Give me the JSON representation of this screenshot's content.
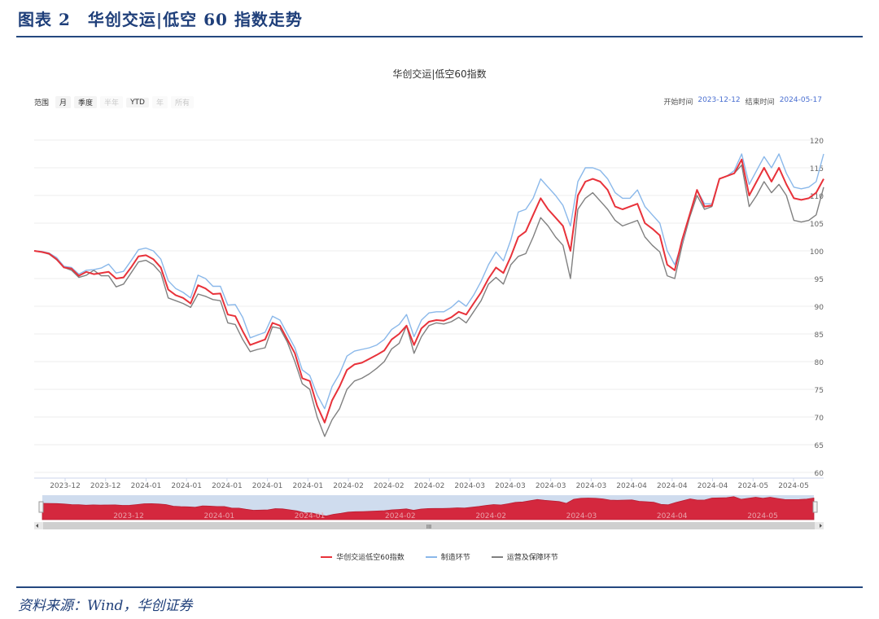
{
  "header": {
    "title": "图表 2　华创交运|低空 60 指数走势"
  },
  "footer": {
    "source": "资料来源：Wind，华创证券"
  },
  "controls": {
    "range_label": "范围",
    "buttons": [
      {
        "label": "月",
        "enabled": true
      },
      {
        "label": "季度",
        "enabled": true
      },
      {
        "label": "半年",
        "enabled": false
      },
      {
        "label": "YTD",
        "enabled": true
      },
      {
        "label": "年",
        "enabled": false
      },
      {
        "label": "所有",
        "enabled": false
      }
    ],
    "start_label": "开始时间",
    "start_value": "2023-12-12",
    "end_label": "结束时间",
    "end_value": "2024-05-17"
  },
  "navigator": {
    "scroll_glyph": "III"
  },
  "chart_data": {
    "type": "line",
    "title": "华创交运|低空60指数",
    "ylim": [
      60,
      120
    ],
    "yticks": [
      60,
      65,
      70,
      75,
      80,
      85,
      90,
      95,
      100,
      105,
      110,
      115,
      120
    ],
    "grid": true,
    "legend_position": "bottom",
    "xtick_labels": [
      "2023-12",
      "2023-12",
      "2024-01",
      "2024-01",
      "2024-01",
      "2024-01",
      "2024-01",
      "2024-02",
      "2024-02",
      "2024-02",
      "2024-03",
      "2024-03",
      "2024-03",
      "2024-03",
      "2024-04",
      "2024-04",
      "2024-04",
      "2024-05",
      "2024-05"
    ],
    "navigator_labels": [
      "2023-12",
      "2024-01",
      "2024-01",
      "2024-02",
      "2024-02",
      "2024-03",
      "2024-04",
      "2024-05"
    ],
    "colors": {
      "index": "#e8323a",
      "manufacturing": "#8ab8ea",
      "operations": "#808080",
      "navigator_fill": "#d4283e",
      "navigator_bg": "#cfdcee"
    },
    "series": [
      {
        "name": "华创交运低空60指数",
        "color": "#e8323a",
        "values": [
          100,
          99.8,
          99.5,
          98.5,
          97,
          96.8,
          95.5,
          96.2,
          95.8,
          96,
          96.2,
          95,
          95.2,
          97,
          99,
          99.2,
          98.5,
          97,
          93,
          92,
          91.5,
          90.5,
          93.8,
          93.2,
          92.2,
          92.3,
          88.5,
          88.2,
          85.5,
          83,
          83.5,
          84,
          87,
          86.5,
          84,
          81.5,
          77,
          76.5,
          72,
          69,
          73,
          75.5,
          78.5,
          79.5,
          79.8,
          80.5,
          81.2,
          82,
          84,
          85,
          86.5,
          83,
          86,
          87.2,
          87.5,
          87.4,
          88,
          89,
          88.5,
          90.5,
          92.5,
          95,
          97,
          96,
          99,
          102.5,
          103.5,
          106.5,
          109.5,
          107.5,
          106,
          104.5,
          100,
          110,
          112.5,
          113,
          112.5,
          111,
          108,
          107.5,
          108,
          108.5,
          105,
          104,
          102.8,
          97.5,
          96.5,
          102,
          106.5,
          111,
          108,
          108.2,
          113,
          113.5,
          114,
          116.5,
          110,
          112.5,
          115,
          112.5,
          115,
          112,
          109.5,
          109.2,
          109.5,
          110.5,
          113
        ]
      },
      {
        "name": "制造环节",
        "color": "#8ab8ea",
        "values": [
          100,
          99.9,
          99.6,
          98.8,
          97.2,
          97,
          95.8,
          96.5,
          96.6,
          96.9,
          97.6,
          96,
          96.3,
          98.2,
          100.2,
          100.5,
          100,
          98.5,
          94.6,
          93.2,
          92.5,
          91.5,
          95.6,
          95,
          93.6,
          93.6,
          90.2,
          90.3,
          88,
          84.3,
          84.8,
          85.3,
          88.2,
          87.5,
          85,
          82.5,
          78.5,
          77.5,
          74,
          71.5,
          75.5,
          77.8,
          81,
          81.9,
          82.2,
          82.5,
          83,
          84,
          85.8,
          86.7,
          88.5,
          84.5,
          87.5,
          88.8,
          89,
          89,
          89.8,
          91,
          90,
          92,
          94.5,
          97.5,
          99.8,
          98.2,
          102,
          107,
          107.5,
          109.5,
          113,
          111.5,
          110,
          108.2,
          104.5,
          112.5,
          115,
          115,
          114.5,
          113,
          110.5,
          109.5,
          109.5,
          111,
          108,
          106.5,
          105,
          100,
          97.5,
          101.5,
          106.5,
          111,
          108.5,
          108.5,
          113,
          113.5,
          114.5,
          117.5,
          112,
          114.5,
          117,
          115,
          117.5,
          114,
          111.5,
          111.2,
          111.5,
          112.5,
          117.5
        ]
      },
      {
        "name": "运营及保障环节",
        "color": "#808080",
        "values": [
          100,
          99.8,
          99.4,
          98.4,
          97,
          96.5,
          95.2,
          95.6,
          96.5,
          95.5,
          95.5,
          93.5,
          94,
          96,
          98,
          98.3,
          97.5,
          96,
          91.5,
          91,
          90.5,
          89.8,
          92.2,
          91.8,
          91.2,
          91,
          87,
          86.7,
          84,
          81.8,
          82.2,
          82.5,
          86.3,
          86,
          83.5,
          80,
          76,
          75,
          70,
          66.5,
          69.5,
          71.5,
          75,
          76.5,
          77,
          77.8,
          78.8,
          80,
          82.3,
          83.3,
          86.5,
          81.5,
          84.5,
          86.5,
          87,
          86.8,
          87.2,
          88,
          87,
          89,
          91,
          94,
          95.2,
          94,
          97.5,
          99,
          99.5,
          102.5,
          106,
          104.5,
          102.5,
          101,
          95,
          107.5,
          109.5,
          110.5,
          109,
          107.5,
          105.5,
          104.5,
          105,
          105.5,
          102.5,
          101,
          99.8,
          95.5,
          95,
          101,
          106,
          110,
          107.5,
          108,
          113,
          113.5,
          114,
          115.5,
          108,
          110,
          112.5,
          110.5,
          112,
          110,
          105.5,
          105.2,
          105.5,
          106.5,
          111.5
        ]
      }
    ]
  }
}
